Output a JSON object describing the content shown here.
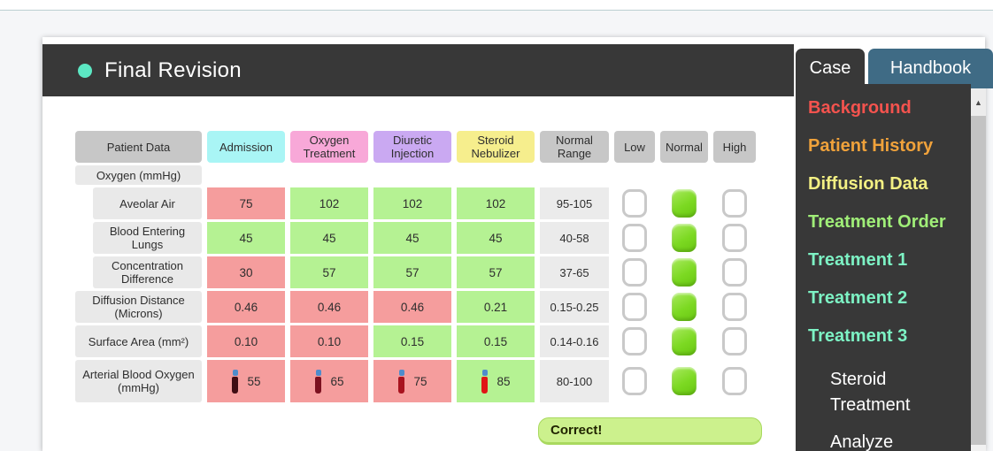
{
  "header": {
    "title": "Final Revision",
    "dot_color": "#5ce7c3"
  },
  "tabs": [
    {
      "label": "Case",
      "active": true
    },
    {
      "label": "Handbook",
      "active": false
    }
  ],
  "sidebar": {
    "items": [
      {
        "label": "Background",
        "color": "#f4534e",
        "bold": true,
        "indent": false
      },
      {
        "label": "Patient History",
        "color": "#f0a23b",
        "bold": true,
        "indent": false
      },
      {
        "label": "Diffusion Data",
        "color": "#f3f083",
        "bold": true,
        "indent": false
      },
      {
        "label": "Treatment Order",
        "color": "#a0ee78",
        "bold": true,
        "indent": false
      },
      {
        "label": "Treatment 1",
        "color": "#7df2c4",
        "bold": true,
        "indent": false
      },
      {
        "label": "Treatment 2",
        "color": "#7df2c4",
        "bold": true,
        "indent": false
      },
      {
        "label": "Treatment 3",
        "color": "#7df2c4",
        "bold": true,
        "indent": false
      },
      {
        "label": "Steroid Treatment",
        "color": "#ffffff",
        "bold": false,
        "indent": true
      },
      {
        "label": "Analyze",
        "color": "#ffffff",
        "bold": false,
        "indent": true
      }
    ],
    "scroll_up_icon": "▲"
  },
  "table": {
    "columns": [
      {
        "label": "Patient Data",
        "bg": "#c7c7c7"
      },
      {
        "label": "Admission",
        "bg": "#a9f5f5"
      },
      {
        "label": "Oxygen Treatment",
        "bg": "#f8a8d8"
      },
      {
        "label": "Diuretic Injection",
        "bg": "#caa9f2"
      },
      {
        "label": "Steroid Nebulizer",
        "bg": "#f6ee8d"
      },
      {
        "label": "Normal Range",
        "bg": "#c7c7c7"
      },
      {
        "label": "Low",
        "bg": "#c7c7c7"
      },
      {
        "label": "Normal",
        "bg": "#c7c7c7"
      },
      {
        "label": "High",
        "bg": "#c7c7c7"
      }
    ],
    "section_label": "Oxygen (mmHg)",
    "rows": [
      {
        "label": "Aveolar Air",
        "indent": true,
        "cells": [
          {
            "value": "75",
            "status": "out"
          },
          {
            "value": "102",
            "status": "in"
          },
          {
            "value": "102",
            "status": "in"
          },
          {
            "value": "102",
            "status": "in"
          }
        ],
        "range": "95-105",
        "checks": {
          "low": false,
          "normal": true,
          "high": false
        }
      },
      {
        "label": "Blood Entering Lungs",
        "indent": true,
        "cells": [
          {
            "value": "45",
            "status": "in"
          },
          {
            "value": "45",
            "status": "in"
          },
          {
            "value": "45",
            "status": "in"
          },
          {
            "value": "45",
            "status": "in"
          }
        ],
        "range": "40-58",
        "checks": {
          "low": false,
          "normal": true,
          "high": false
        }
      },
      {
        "label": "Concentration Difference",
        "indent": true,
        "cells": [
          {
            "value": "30",
            "status": "out"
          },
          {
            "value": "57",
            "status": "in"
          },
          {
            "value": "57",
            "status": "in"
          },
          {
            "value": "57",
            "status": "in"
          }
        ],
        "range": "37-65",
        "checks": {
          "low": false,
          "normal": true,
          "high": false
        }
      },
      {
        "label": "Diffusion Distance (Microns)",
        "indent": false,
        "cells": [
          {
            "value": "0.46",
            "status": "out"
          },
          {
            "value": "0.46",
            "status": "out"
          },
          {
            "value": "0.46",
            "status": "out"
          },
          {
            "value": "0.21",
            "status": "in"
          }
        ],
        "range": "0.15-0.25",
        "checks": {
          "low": false,
          "normal": true,
          "high": false
        }
      },
      {
        "label": "Surface Area (mm²)",
        "indent": false,
        "cells": [
          {
            "value": "0.10",
            "status": "out"
          },
          {
            "value": "0.10",
            "status": "out"
          },
          {
            "value": "0.15",
            "status": "in"
          },
          {
            "value": "0.15",
            "status": "in"
          }
        ],
        "range": "0.14-0.16",
        "checks": {
          "low": false,
          "normal": true,
          "high": false
        }
      },
      {
        "label": "Arterial Blood Oxygen (mmHg)",
        "indent": false,
        "cells": [
          {
            "value": "55",
            "status": "out",
            "tube": "#400d14"
          },
          {
            "value": "65",
            "status": "out",
            "tube": "#7c1120"
          },
          {
            "value": "75",
            "status": "out",
            "tube": "#a8131f"
          },
          {
            "value": "85",
            "status": "in",
            "tube": "#e01616"
          }
        ],
        "range": "80-100",
        "checks": {
          "low": false,
          "normal": true,
          "high": false
        }
      }
    ]
  },
  "feedback": {
    "label": "Correct!"
  },
  "colors": {
    "cell_out_of_range": "#f59d9d",
    "cell_in_range": "#b5f293",
    "checked_green": "#7cd922",
    "panel_dark": "#383838",
    "handbook_tab": "#3f6b85",
    "tube_cap_blue": "#4f8ccc"
  }
}
